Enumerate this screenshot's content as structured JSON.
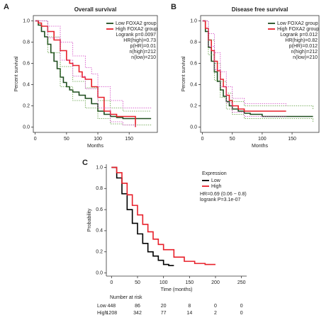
{
  "chart_data": [
    {
      "type": "line",
      "panel": "A",
      "title": "Overall survival",
      "x_label": "Months",
      "y_label": "Percent survival",
      "xlim": [
        -3,
        195
      ],
      "ylim": [
        -0.05,
        1.05
      ],
      "xticks": [
        0,
        50,
        100,
        150
      ],
      "yticks": [
        {
          "value": 0,
          "label": "0.0"
        },
        {
          "value": 0.2,
          "label": "0.2"
        },
        {
          "value": 0.4,
          "label": "0.4"
        },
        {
          "value": 0.6,
          "label": "0.6"
        },
        {
          "value": 0.8,
          "label": "0.8"
        },
        {
          "value": 1,
          "label": "1.0"
        }
      ],
      "frame": true,
      "step": true,
      "annotations": [
        "Logrank p=0.0097",
        "HR(high)=0.73",
        "p(HR)=0.01",
        "n(high)=212",
        "n(low)=210"
      ],
      "series": [
        {
          "name": "Low FOXA2 group",
          "color": "#1f4d1f",
          "x": [
            0,
            5,
            10,
            15,
            20,
            25,
            30,
            35,
            40,
            45,
            50,
            55,
            60,
            70,
            80,
            90,
            100,
            110,
            120,
            130,
            140,
            185
          ],
          "values": [
            1,
            0.96,
            0.9,
            0.85,
            0.78,
            0.7,
            0.62,
            0.55,
            0.47,
            0.42,
            0.38,
            0.35,
            0.33,
            0.3,
            0.27,
            0.22,
            0.15,
            0.12,
            0.1,
            0.09,
            0.08,
            0.08
          ]
        },
        {
          "name": "High FOXA2 group",
          "color": "#e8202a",
          "x": [
            0,
            5,
            10,
            20,
            30,
            40,
            50,
            55,
            60,
            70,
            75,
            80,
            90,
            100,
            110,
            120,
            130,
            160,
            160
          ],
          "values": [
            1,
            0.98,
            0.95,
            0.9,
            0.82,
            0.72,
            0.63,
            0.6,
            0.58,
            0.52,
            0.47,
            0.45,
            0.38,
            0.28,
            0.15,
            0.12,
            0.1,
            0.1,
            0
          ]
        },
        {
          "color": "#5a9a3a",
          "dash": true,
          "x": [
            0,
            20,
            40,
            60,
            80,
            100,
            120,
            140,
            185
          ],
          "values": [
            1,
            0.85,
            0.57,
            0.43,
            0.37,
            0.25,
            0.18,
            0.15,
            0.15
          ]
        },
        {
          "color": "#5a9a3a",
          "dash": true,
          "x": [
            0,
            20,
            40,
            60,
            80,
            100,
            120,
            140,
            185
          ],
          "values": [
            1,
            0.7,
            0.38,
            0.25,
            0.18,
            0.08,
            0.03,
            0.02,
            0.02
          ]
        },
        {
          "color": "#d040c0",
          "dash": true,
          "x": [
            0,
            20,
            40,
            60,
            80,
            90,
            100,
            120,
            140,
            185
          ],
          "values": [
            1,
            0.95,
            0.8,
            0.67,
            0.56,
            0.5,
            0.38,
            0.25,
            0.18,
            0.18
          ]
        },
        {
          "color": "#d040c0",
          "dash": true,
          "x": [
            0,
            20,
            40,
            60,
            80,
            100,
            120,
            140,
            160
          ],
          "values": [
            1,
            0.84,
            0.63,
            0.48,
            0.36,
            0.18,
            0.05,
            0.02,
            0
          ]
        }
      ]
    },
    {
      "type": "line",
      "panel": "B",
      "title": "Disease free survival",
      "x_label": "Months",
      "y_label": "Percent survival",
      "xlim": [
        -3,
        195
      ],
      "ylim": [
        -0.05,
        1.05
      ],
      "xticks": [
        0,
        50,
        100,
        150
      ],
      "yticks": [
        {
          "value": 0,
          "label": "0.0"
        },
        {
          "value": 0.2,
          "label": "0.2"
        },
        {
          "value": 0.4,
          "label": "0.4"
        },
        {
          "value": 0.6,
          "label": "0.6"
        },
        {
          "value": 0.8,
          "label": "0.8"
        },
        {
          "value": 1,
          "label": "1.0"
        }
      ],
      "frame": true,
      "step": true,
      "annotations": [
        "Logrank p=0.012",
        "HR(high)=0.82",
        "p(HR)=0.012",
        "n(high)=212",
        "n(low)=210"
      ],
      "series": [
        {
          "name": "Low FOXA2 group",
          "color": "#1f4d1f",
          "x": [
            0,
            5,
            10,
            15,
            20,
            25,
            30,
            35,
            40,
            45,
            50,
            60,
            70,
            80,
            100,
            185
          ],
          "values": [
            1,
            0.9,
            0.75,
            0.62,
            0.52,
            0.43,
            0.35,
            0.29,
            0.24,
            0.2,
            0.17,
            0.15,
            0.13,
            0.12,
            0.1,
            0.1
          ]
        },
        {
          "name": "High FOXA2 group",
          "color": "#e8202a",
          "x": [
            0,
            5,
            10,
            15,
            20,
            25,
            30,
            35,
            40,
            45,
            50,
            60,
            70,
            80,
            100,
            140
          ],
          "values": [
            1,
            0.93,
            0.82,
            0.72,
            0.62,
            0.53,
            0.45,
            0.38,
            0.3,
            0.25,
            0.2,
            0.17,
            0.15,
            0.15,
            0.15,
            0.15
          ]
        },
        {
          "color": "#5a9a3a",
          "dash": true,
          "x": [
            0,
            10,
            20,
            30,
            40,
            50,
            70,
            185
          ],
          "values": [
            1,
            0.82,
            0.6,
            0.43,
            0.32,
            0.24,
            0.2,
            0.17
          ]
        },
        {
          "color": "#5a9a3a",
          "dash": true,
          "x": [
            0,
            10,
            20,
            30,
            40,
            50,
            70,
            185
          ],
          "values": [
            1,
            0.68,
            0.44,
            0.28,
            0.17,
            0.12,
            0.08,
            0.05
          ]
        },
        {
          "color": "#d040c0",
          "dash": true,
          "x": [
            0,
            10,
            20,
            30,
            40,
            50,
            70,
            140
          ],
          "values": [
            1,
            0.88,
            0.7,
            0.52,
            0.38,
            0.27,
            0.22,
            0.2
          ]
        },
        {
          "color": "#d040c0",
          "dash": true,
          "x": [
            0,
            10,
            20,
            30,
            40,
            50,
            70,
            140
          ],
          "values": [
            1,
            0.76,
            0.54,
            0.38,
            0.23,
            0.14,
            0.1,
            0.1
          ]
        }
      ]
    },
    {
      "type": "line",
      "panel": "C",
      "x_label": "Time (months)",
      "y_label": "Probability",
      "xlim": [
        -10,
        260
      ],
      "ylim": [
        -0.03,
        1.03
      ],
      "xticks": [
        0,
        50,
        100,
        150,
        200,
        250
      ],
      "yticks": [
        {
          "value": 0,
          "label": "0.0"
        },
        {
          "value": 0.2,
          "label": "0.2"
        },
        {
          "value": 0.4,
          "label": "0.4"
        },
        {
          "value": 0.6,
          "label": "0.6"
        },
        {
          "value": 0.8,
          "label": "0.8"
        },
        {
          "value": 1,
          "label": "1.0"
        }
      ],
      "frame": false,
      "step": true,
      "legend_title": "Expression",
      "annotations": [
        "HR=0.69 (0.06 − 0.8)",
        "logrank P=3.1e-07"
      ],
      "series": [
        {
          "name": "Low",
          "color": "#000000",
          "x": [
            0,
            10,
            20,
            30,
            40,
            50,
            60,
            70,
            80,
            90,
            100,
            110,
            120
          ],
          "values": [
            1,
            0.9,
            0.75,
            0.6,
            0.47,
            0.37,
            0.28,
            0.2,
            0.16,
            0.12,
            0.08,
            0.07,
            0.07
          ]
        },
        {
          "name": "High",
          "color": "#e8202a",
          "x": [
            0,
            10,
            20,
            30,
            40,
            50,
            60,
            70,
            80,
            90,
            100,
            120,
            140,
            160,
            180,
            200
          ],
          "values": [
            1,
            0.95,
            0.85,
            0.74,
            0.64,
            0.55,
            0.46,
            0.39,
            0.32,
            0.27,
            0.22,
            0.15,
            0.11,
            0.09,
            0.08,
            0.08
          ]
        }
      ],
      "risk_table": {
        "title": "Number at risk",
        "rows": [
          {
            "label": "Low",
            "color": "#000000",
            "values": [
              448,
              86,
              20,
              8,
              0,
              0
            ]
          },
          {
            "label": "High",
            "color": "#e8202a",
            "values": [
              1208,
              342,
              77,
              14,
              2,
              0
            ]
          }
        ]
      }
    }
  ]
}
